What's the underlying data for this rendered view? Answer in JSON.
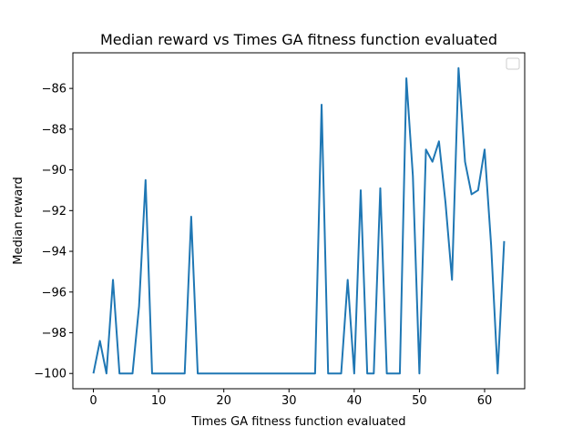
{
  "chart_data": {
    "type": "line",
    "title": "Median reward vs Times GA fitness function evaluated",
    "xlabel": "Times GA fitness function evaluated",
    "ylabel": "Median reward",
    "xlim": [
      -3.15,
      66.15
    ],
    "ylim": [
      -100.75,
      -84.25
    ],
    "xticks": [
      0,
      10,
      20,
      30,
      40,
      50,
      60
    ],
    "yticks": [
      -100,
      -98,
      -96,
      -94,
      -92,
      -90,
      -88,
      -86
    ],
    "grid": false,
    "legend": "upper right (empty)",
    "series": [
      {
        "color": "#1f77b4",
        "x": [
          0,
          1,
          2,
          3,
          4,
          5,
          6,
          7,
          8,
          9,
          10,
          11,
          12,
          13,
          14,
          15,
          16,
          17,
          18,
          19,
          20,
          21,
          22,
          23,
          24,
          25,
          26,
          27,
          28,
          29,
          30,
          31,
          32,
          33,
          34,
          35,
          36,
          37,
          38,
          39,
          40,
          41,
          42,
          43,
          44,
          45,
          46,
          47,
          48,
          49,
          50,
          51,
          52,
          53,
          54,
          55,
          56,
          57,
          58,
          59,
          60,
          61,
          62,
          63
        ],
        "y": [
          -100,
          -98.4,
          -100,
          -95.4,
          -100,
          -100,
          -100,
          -96.7,
          -90.5,
          -100,
          -100,
          -100,
          -100,
          -100,
          -100,
          -92.3,
          -100,
          -100,
          -100,
          -100,
          -100,
          -100,
          -100,
          -100,
          -100,
          -100,
          -100,
          -100,
          -100,
          -100,
          -100,
          -100,
          -100,
          -100,
          -100,
          -86.8,
          -100,
          -100,
          -100,
          -95.4,
          -100,
          -91.0,
          -100,
          -100,
          -90.9,
          -100,
          -100,
          -100,
          -85.5,
          -90.3,
          -100,
          -89.0,
          -89.6,
          -88.6,
          -91.6,
          -95.4,
          -85.0,
          -89.6,
          -91.2,
          -91.0,
          -89.0,
          -93.7,
          -100,
          -93.5
        ]
      }
    ]
  }
}
